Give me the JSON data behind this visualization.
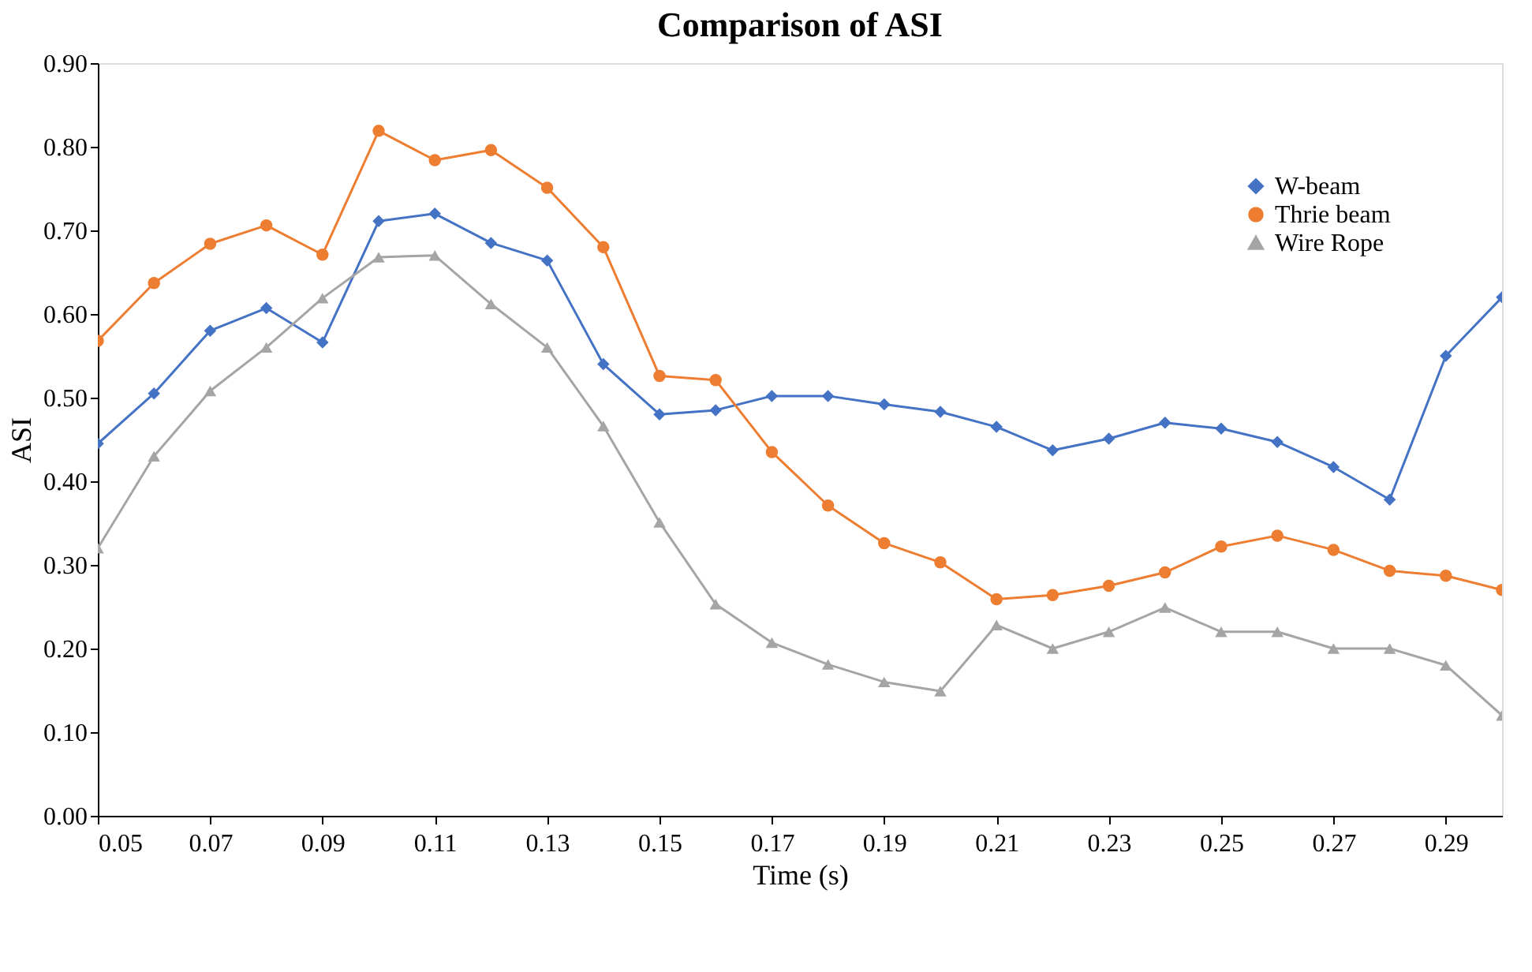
{
  "chart_data": {
    "type": "line",
    "title": "Comparison of ASI",
    "xlabel": "Time (s)",
    "ylabel": "ASI",
    "x": [
      0.05,
      0.06,
      0.07,
      0.08,
      0.09,
      0.1,
      0.11,
      0.12,
      0.13,
      0.14,
      0.15,
      0.16,
      0.17,
      0.18,
      0.19,
      0.2,
      0.21,
      0.22,
      0.23,
      0.24,
      0.25,
      0.26,
      0.27,
      0.28,
      0.29,
      0.3
    ],
    "series": [
      {
        "name": "W-beam",
        "color": "#4472c4",
        "marker": "diamond",
        "values": [
          0.445,
          0.505,
          0.58,
          0.607,
          0.566,
          0.711,
          0.72,
          0.685,
          0.664,
          0.54,
          0.48,
          0.485,
          0.502,
          0.502,
          0.492,
          0.483,
          0.465,
          0.437,
          0.451,
          0.47,
          0.463,
          0.447,
          0.417,
          0.378,
          0.55,
          0.62
        ]
      },
      {
        "name": "Thrie beam",
        "color": "#ed7d31",
        "marker": "circle",
        "values": [
          0.568,
          0.637,
          0.684,
          0.706,
          0.671,
          0.819,
          0.784,
          0.796,
          0.751,
          0.68,
          0.526,
          0.521,
          0.435,
          0.371,
          0.326,
          0.303,
          0.259,
          0.264,
          0.275,
          0.291,
          0.322,
          0.335,
          0.318,
          0.293,
          0.287,
          0.27
        ]
      },
      {
        "name": "Wire Rope",
        "color": "#a5a5a5",
        "marker": "triangle",
        "values": [
          0.32,
          0.43,
          0.508,
          0.56,
          0.619,
          0.668,
          0.67,
          0.612,
          0.56,
          0.466,
          0.351,
          0.253,
          0.207,
          0.181,
          0.16,
          0.149,
          0.228,
          0.2,
          0.22,
          0.249,
          0.22,
          0.22,
          0.2,
          0.2,
          0.18,
          0.12
        ]
      }
    ],
    "xlim": [
      0.05,
      0.3
    ],
    "xticks": [
      0.05,
      0.07,
      0.09,
      0.11,
      0.13,
      0.15,
      0.17,
      0.19,
      0.21,
      0.23,
      0.25,
      0.27,
      0.29
    ],
    "ylim": [
      0,
      0.9
    ],
    "yticks": [
      {
        "value": 0,
        "label": "0.00"
      },
      {
        "value": 0.1,
        "label": "0.10"
      },
      {
        "value": 0.2,
        "label": "0.20"
      },
      {
        "value": 0.3,
        "label": "0.30"
      },
      {
        "value": 0.4,
        "label": "0.40"
      },
      {
        "value": 0.5,
        "label": "0.50"
      },
      {
        "value": 0.6,
        "label": "0.60"
      },
      {
        "value": 0.7,
        "label": "0.70"
      },
      {
        "value": 0.8,
        "label": "0.80"
      },
      {
        "value": 0.9,
        "label": "0.90"
      }
    ],
    "grid": false,
    "legend": "top right",
    "line_style": "solid"
  }
}
